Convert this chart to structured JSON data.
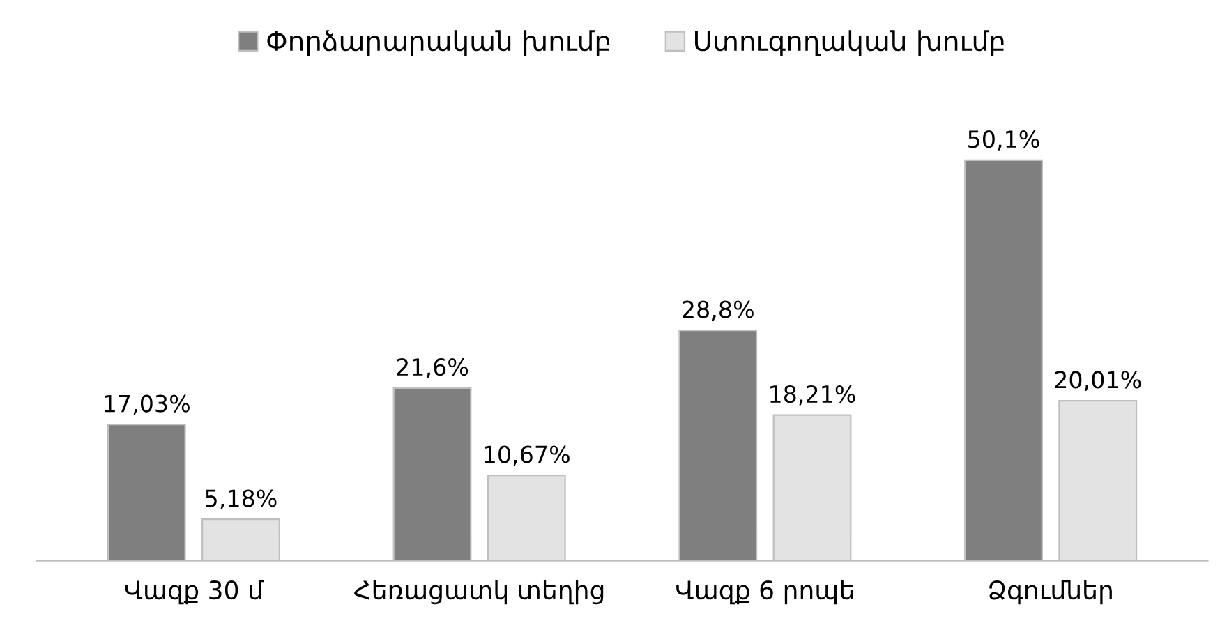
{
  "chart_data": {
    "type": "bar",
    "categories": [
      "Վազք 30 մ",
      "Հեռացատկ տեղից",
      "Վազք 6 րոպե",
      "Ձգումներ"
    ],
    "series": [
      {
        "name": "Փորձարարական խումբ",
        "color": "#7f7f7f",
        "values": [
          17.03,
          21.6,
          28.8,
          50.1
        ],
        "value_labels": [
          "17,03%",
          "21,6%",
          "28,8%",
          "50,1%"
        ]
      },
      {
        "name": "Ստուգողական խումբ",
        "color": "#e3e3e3",
        "values": [
          5.18,
          10.67,
          18.21,
          20.01
        ],
        "value_labels": [
          "5,18%",
          "10,67%",
          "18,21%",
          "20,01%"
        ]
      }
    ],
    "legend": "top",
    "grid": false,
    "tick_labels": "x"
  }
}
